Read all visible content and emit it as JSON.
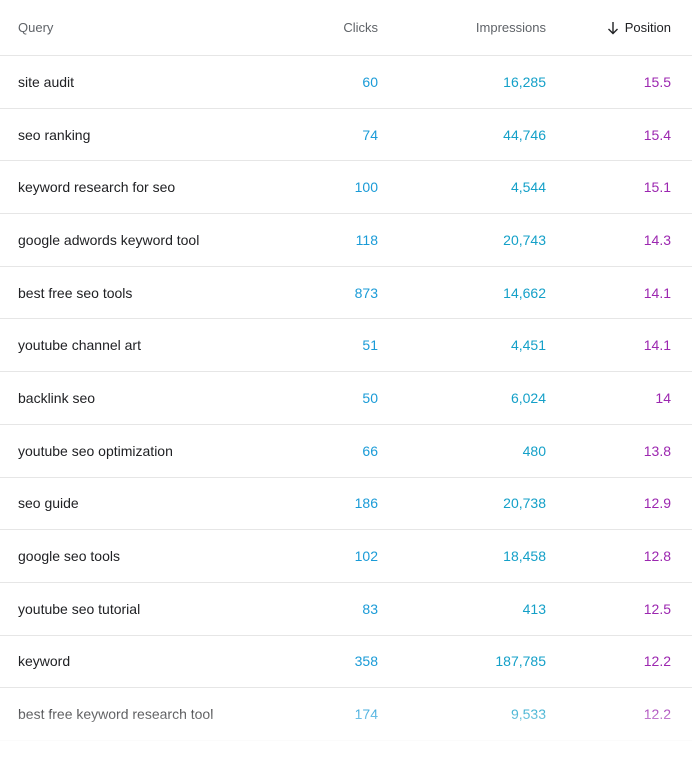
{
  "header": {
    "query": "Query",
    "clicks": "Clicks",
    "impressions": "Impressions",
    "position": "Position",
    "sort_icon": "arrow-down-icon"
  },
  "colors": {
    "clicks": "#1a9bd7",
    "impressions": "#14a0c8",
    "position": "#9c27b0"
  },
  "rows": [
    {
      "query": "site audit",
      "clicks": "60",
      "impressions": "16,285",
      "position": "15.5"
    },
    {
      "query": "seo ranking",
      "clicks": "74",
      "impressions": "44,746",
      "position": "15.4"
    },
    {
      "query": "keyword research for seo",
      "clicks": "100",
      "impressions": "4,544",
      "position": "15.1"
    },
    {
      "query": "google adwords keyword tool",
      "clicks": "118",
      "impressions": "20,743",
      "position": "14.3"
    },
    {
      "query": "best free seo tools",
      "clicks": "873",
      "impressions": "14,662",
      "position": "14.1"
    },
    {
      "query": "youtube channel art",
      "clicks": "51",
      "impressions": "4,451",
      "position": "14.1"
    },
    {
      "query": "backlink seo",
      "clicks": "50",
      "impressions": "6,024",
      "position": "14"
    },
    {
      "query": "youtube seo optimization",
      "clicks": "66",
      "impressions": "480",
      "position": "13.8"
    },
    {
      "query": "seo guide",
      "clicks": "186",
      "impressions": "20,738",
      "position": "12.9"
    },
    {
      "query": "google seo tools",
      "clicks": "102",
      "impressions": "18,458",
      "position": "12.8"
    },
    {
      "query": "youtube seo tutorial",
      "clicks": "83",
      "impressions": "413",
      "position": "12.5"
    },
    {
      "query": "keyword",
      "clicks": "358",
      "impressions": "187,785",
      "position": "12.2"
    },
    {
      "query": "best free keyword research tool",
      "clicks": "174",
      "impressions": "9,533",
      "position": "12.2"
    }
  ]
}
